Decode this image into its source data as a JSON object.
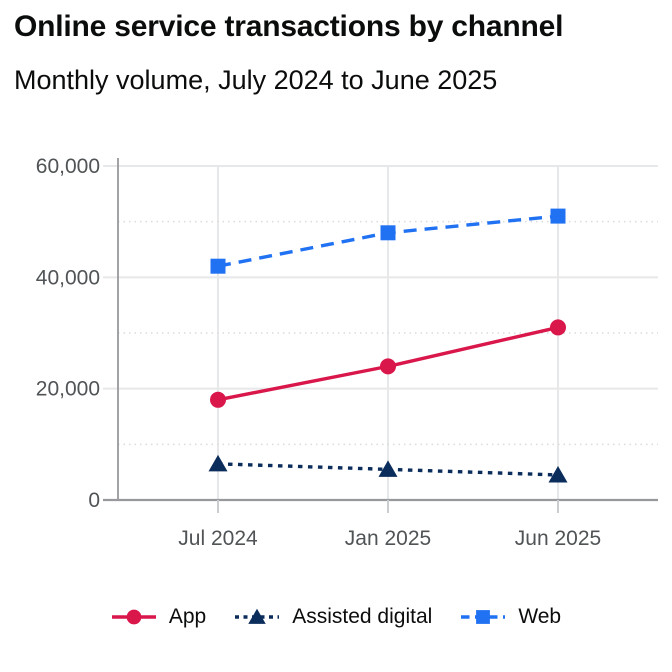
{
  "header": {
    "title": "Online service transactions by channel",
    "subtitle": "Monthly volume, July 2024 to June 2025"
  },
  "chart_data": {
    "type": "line",
    "categories": [
      "Jul 2024",
      "Jan 2025",
      "Jun 2025"
    ],
    "series": [
      {
        "name": "App",
        "values": [
          18000,
          24000,
          31000
        ],
        "color": "#D9174B",
        "line_style": "solid",
        "marker": "circle"
      },
      {
        "name": "Assisted digital",
        "values": [
          6500,
          5500,
          4500
        ],
        "color": "#0B2D5C",
        "line_style": "dotted",
        "marker": "triangle"
      },
      {
        "name": "Web",
        "values": [
          42000,
          48000,
          51000
        ],
        "color": "#2072F3",
        "line_style": "dashed",
        "marker": "square"
      }
    ],
    "ylim": [
      0,
      60000
    ],
    "y_ticks": [
      0,
      20000,
      40000,
      60000
    ],
    "y_tick_labels": [
      "0",
      "20,000",
      "40,000",
      "60,000"
    ],
    "y_minor_ticks": [
      10000,
      30000,
      50000
    ],
    "grid": true,
    "legend_position": "bottom",
    "xlabel": "",
    "ylabel": ""
  },
  "style_colors": {
    "axis_label": "#505456",
    "axis_line": "#97999C",
    "grid_major": "#E6E8E9",
    "grid_minor": "#D9DBDC",
    "tick": "#CBCED0"
  }
}
